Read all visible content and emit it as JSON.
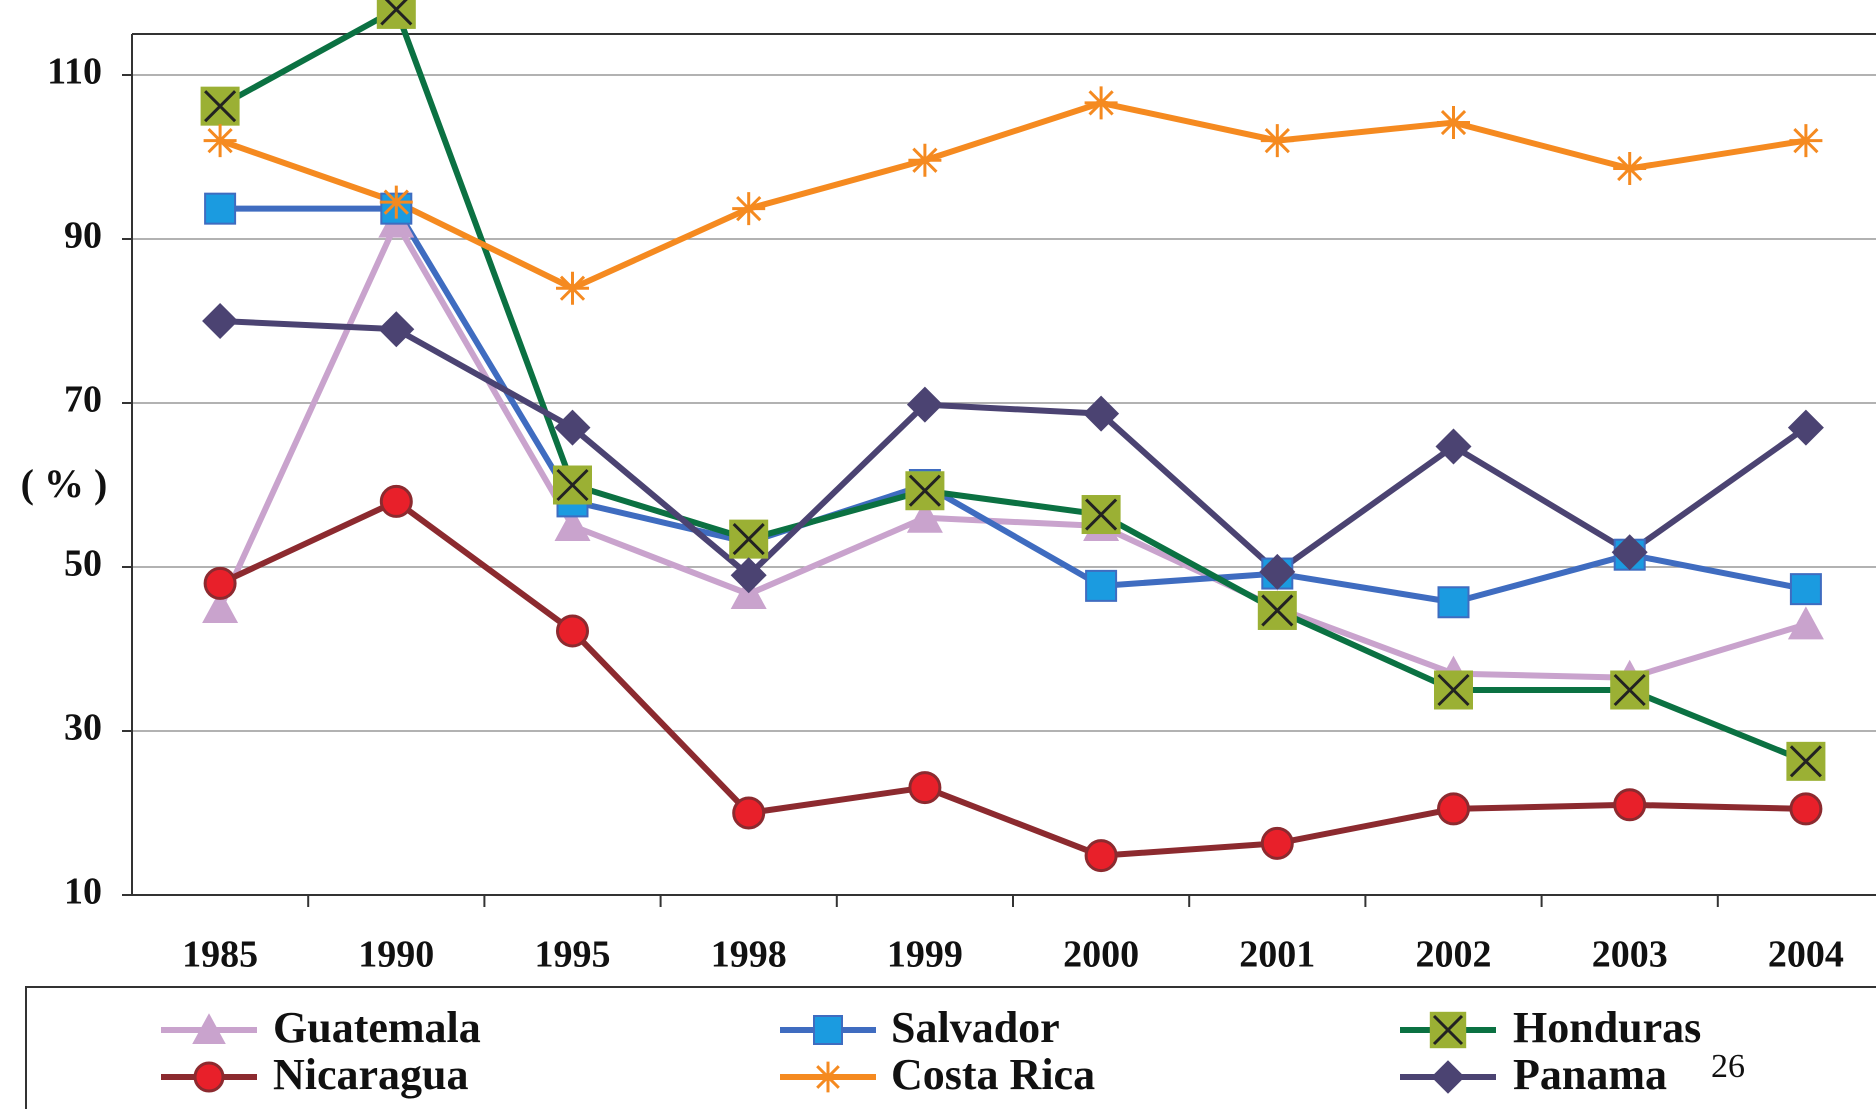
{
  "chart_data": {
    "type": "line",
    "y_label": "( % )",
    "categories": [
      "1985",
      "1990",
      "1995",
      "1998",
      "1999",
      "2000",
      "2001",
      "2002",
      "2003",
      "2004"
    ],
    "series": [
      {
        "name": "Guatemala",
        "color": "#c9a3cd",
        "marker": "triangle",
        "values": [
          45,
          92,
          55,
          46.7,
          56,
          55,
          45,
          37,
          36.5,
          43
        ]
      },
      {
        "name": "Salvador",
        "color": "#3f6cc0",
        "marker_color": "#1b9be0",
        "marker": "square",
        "values": [
          93.7,
          93.7,
          58,
          53,
          60,
          47.7,
          49.2,
          45.7,
          51.5,
          47.3
        ]
      },
      {
        "name": "Honduras",
        "color": "#0b7142",
        "marker_color": "#9bb034",
        "marker": "x-square",
        "values": [
          106.2,
          118,
          60,
          53.4,
          59.3,
          56.4,
          44.7,
          35,
          35,
          26.3
        ]
      },
      {
        "name": "Nicaragua",
        "color": "#8c2a2f",
        "marker_color": "#e8202a",
        "marker": "circle",
        "values": [
          48,
          58,
          42.2,
          20,
          23.1,
          14.8,
          16.3,
          20.5,
          21,
          20.5
        ]
      },
      {
        "name": "Costa Rica",
        "color": "#f58a20",
        "marker": "asterisk",
        "values": [
          102,
          94.5,
          84,
          93.7,
          99.6,
          106.6,
          102,
          104.2,
          98.6,
          102
        ]
      },
      {
        "name": "Panama",
        "color": "#4b4372",
        "marker": "diamond",
        "values": [
          80,
          79,
          67,
          49,
          69.8,
          68.7,
          49.4,
          64.7,
          51.8,
          67
        ]
      }
    ],
    "ylim": [
      10,
      115
    ],
    "yticks": [
      10,
      30,
      50,
      70,
      90,
      110
    ],
    "grid": true,
    "annotations": [
      "26"
    ]
  }
}
